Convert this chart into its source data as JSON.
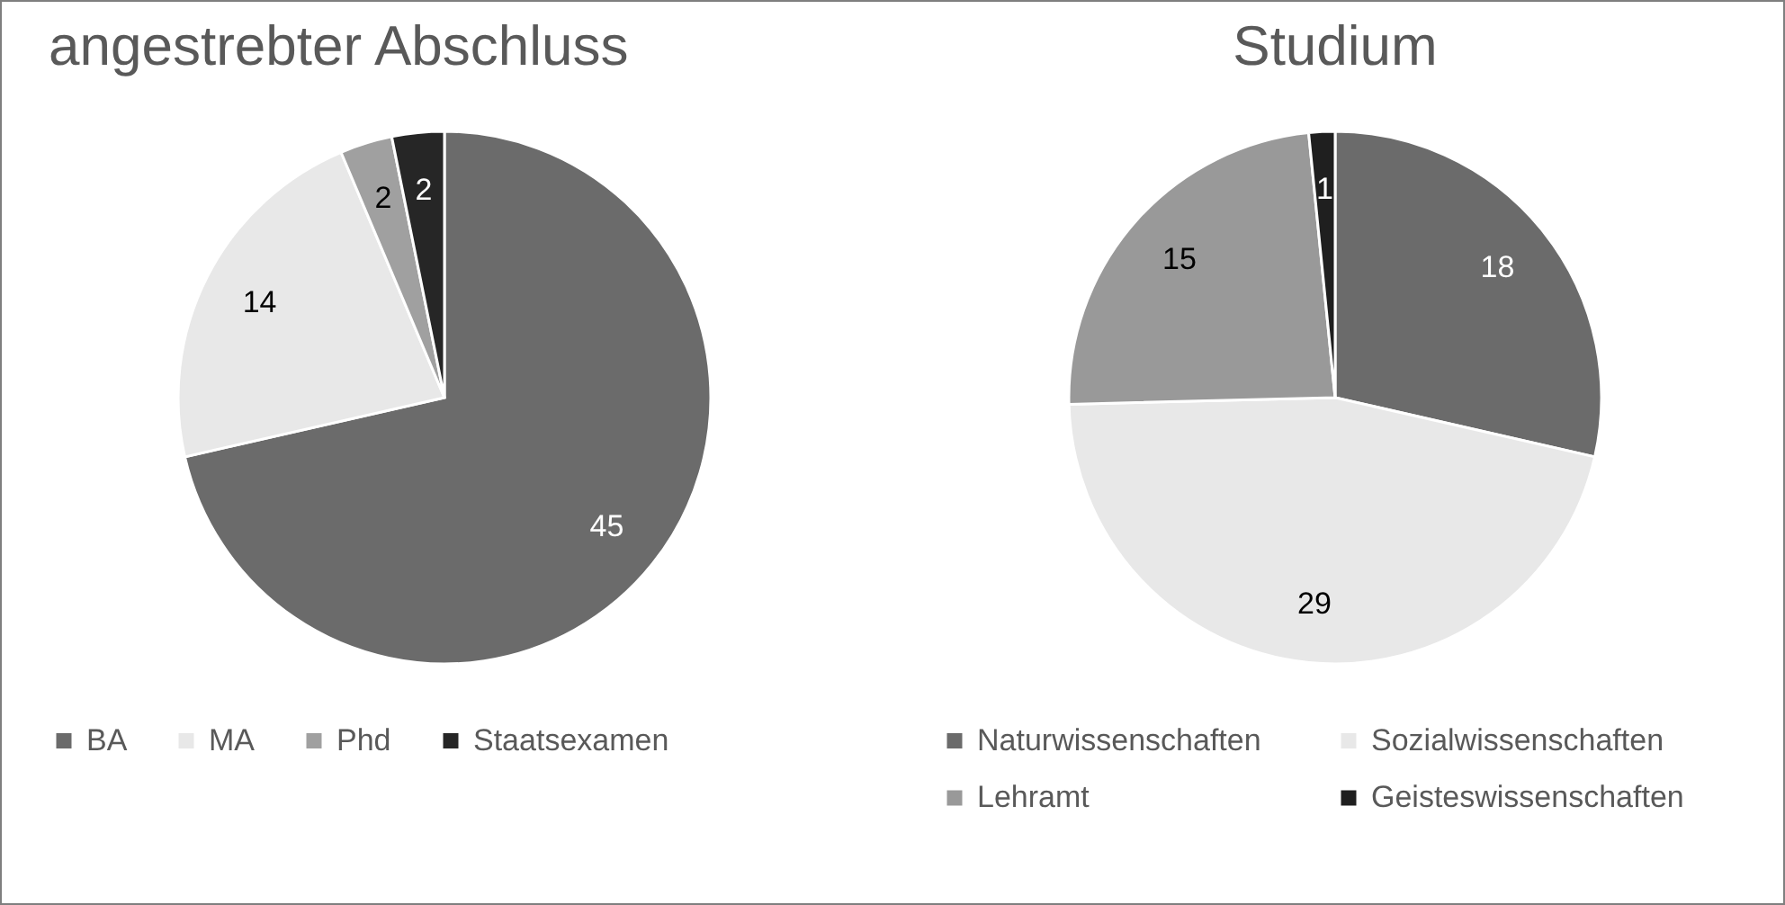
{
  "chart_data": [
    {
      "type": "pie",
      "title": "angestrebter Abschluss",
      "categories": [
        "BA",
        "MA",
        "Phd",
        "Staatsexamen"
      ],
      "values": [
        45,
        14,
        2,
        2
      ],
      "colors": [
        "#6b6b6b",
        "#e8e8e8",
        "#a0a0a0",
        "#262626"
      ],
      "data_labels": true,
      "legend": "bottom"
    },
    {
      "type": "pie",
      "title": "Studium",
      "categories": [
        "Naturwissenschaften",
        "Sozialwissenschaften",
        "Lehramt",
        "Geisteswissenschaften"
      ],
      "values": [
        18,
        29,
        15,
        1
      ],
      "colors": [
        "#6b6b6b",
        "#e8e8e8",
        "#999999",
        "#1f1f1f"
      ],
      "data_labels": true,
      "legend": "bottom"
    }
  ]
}
